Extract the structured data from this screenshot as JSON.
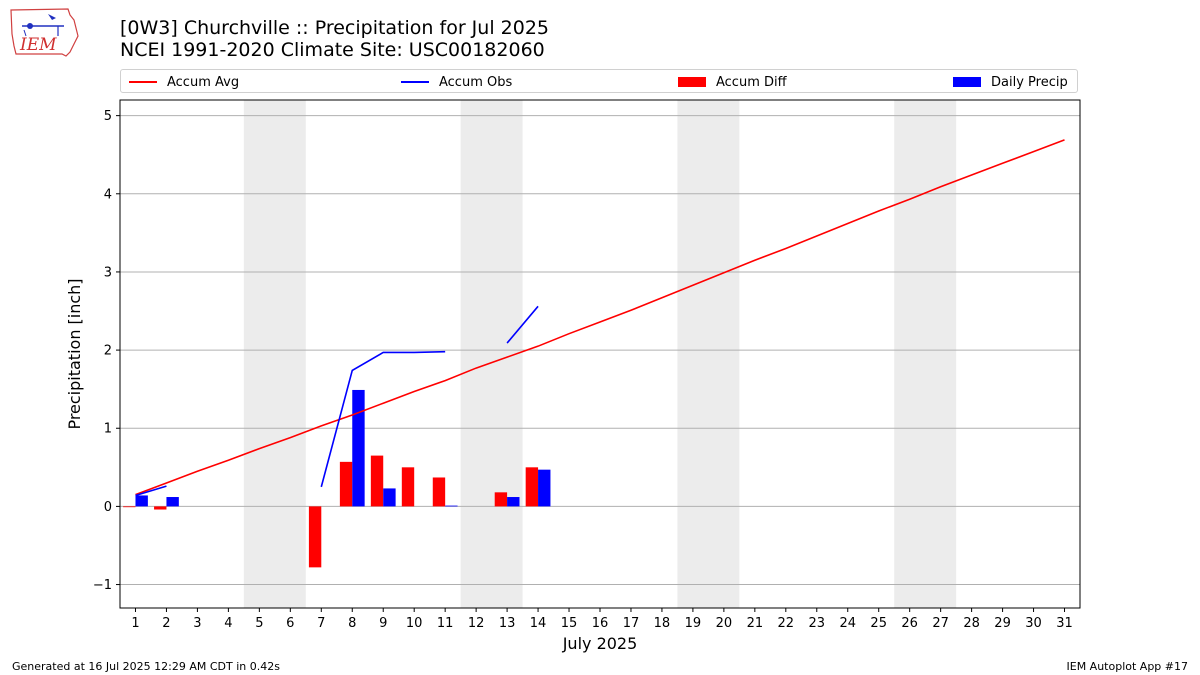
{
  "logo": {
    "text": "IEM"
  },
  "header": {
    "title_line1": "[0W3] Churchville :: Precipitation for Jul 2025",
    "title_line2": "NCEI 1991-2020 Climate Site: USC00182060"
  },
  "legend": [
    {
      "label": "Accum Avg",
      "color": "#ff0000",
      "kind": "line"
    },
    {
      "label": "Accum Obs",
      "color": "#0000ff",
      "kind": "line"
    },
    {
      "label": "Accum Diff",
      "color": "#ff0000",
      "kind": "box"
    },
    {
      "label": "Daily Precip",
      "color": "#0000ff",
      "kind": "box"
    }
  ],
  "chart_data": {
    "type": "bar",
    "xlabel": "July 2025",
    "ylabel": "Precipitation [inch]",
    "xlim": [
      0.5,
      31.5
    ],
    "ylim": [
      -1.3,
      5.2
    ],
    "x_ticks": [
      1,
      2,
      3,
      4,
      5,
      6,
      7,
      8,
      9,
      10,
      11,
      12,
      13,
      14,
      15,
      16,
      17,
      18,
      19,
      20,
      21,
      22,
      23,
      24,
      25,
      26,
      27,
      28,
      29,
      30,
      31
    ],
    "y_ticks": [
      -1,
      0,
      1,
      2,
      3,
      4,
      5
    ],
    "y_tick_labels": [
      "−1",
      "0",
      "1",
      "2",
      "3",
      "4",
      "5"
    ],
    "grid": "horizontal",
    "weekend_shading": [
      [
        4.5,
        6.5
      ],
      [
        11.5,
        13.5
      ],
      [
        18.5,
        20.5
      ],
      [
        25.5,
        27.5
      ]
    ],
    "series": [
      {
        "name": "Accum Avg",
        "type": "line",
        "color": "#ff0000",
        "x": [
          1,
          2,
          3,
          4,
          5,
          6,
          7,
          8,
          9,
          10,
          11,
          12,
          13,
          14,
          15,
          16,
          17,
          18,
          19,
          20,
          21,
          22,
          23,
          24,
          25,
          26,
          27,
          28,
          29,
          30,
          31
        ],
        "values": [
          0.15,
          0.3,
          0.45,
          0.59,
          0.74,
          0.88,
          1.03,
          1.17,
          1.32,
          1.47,
          1.61,
          1.77,
          1.91,
          2.05,
          2.21,
          2.36,
          2.51,
          2.67,
          2.83,
          2.99,
          3.15,
          3.3,
          3.46,
          3.62,
          3.78,
          3.93,
          4.09,
          4.24,
          4.39,
          4.54,
          4.69
        ]
      },
      {
        "name": "Accum Obs",
        "type": "line",
        "color": "#0000ff",
        "segments": [
          {
            "x": [
              1,
              2
            ],
            "values": [
              0.14,
              0.26
            ]
          },
          {
            "x": [
              7,
              8,
              9,
              10,
              11
            ],
            "values": [
              0.25,
              1.74,
              1.97,
              1.97,
              1.98
            ]
          },
          {
            "x": [
              13,
              14
            ],
            "values": [
              2.09,
              2.56
            ]
          }
        ]
      },
      {
        "name": "Accum Diff",
        "type": "bar",
        "color": "#ff0000",
        "x": [
          1,
          2,
          7,
          8,
          9,
          10,
          11,
          13,
          14
        ],
        "values": [
          -0.01,
          -0.04,
          -0.78,
          0.57,
          0.65,
          0.5,
          0.37,
          0.18,
          0.5
        ]
      },
      {
        "name": "Daily Precip",
        "type": "bar",
        "color": "#0000ff",
        "x": [
          1,
          2,
          8,
          9,
          11,
          13,
          14
        ],
        "values": [
          0.14,
          0.12,
          1.49,
          0.23,
          0.01,
          0.12,
          0.47
        ]
      }
    ]
  },
  "footer": {
    "left": "Generated at 16 Jul 2025 12:29 AM CDT in 0.42s",
    "right": "IEM Autoplot App #17"
  }
}
